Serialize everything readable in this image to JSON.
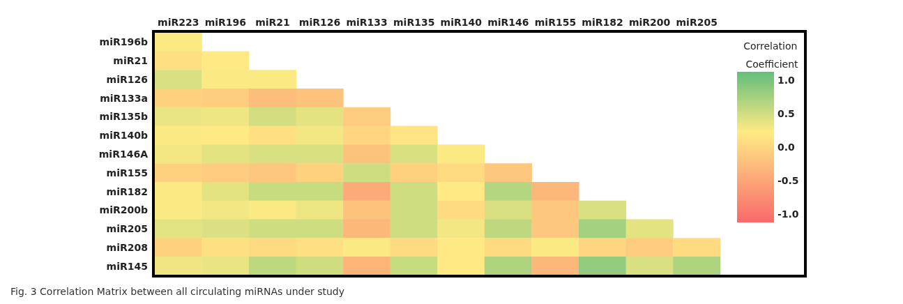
{
  "chart_data": {
    "type": "heatmap",
    "clabel": "Correlation Coefficient",
    "categories": [
      "miR223",
      "miR196",
      "miR21",
      "miR126",
      "miR133",
      "miR135",
      "miR140",
      "miR146",
      "miR155",
      "miR182",
      "miR200",
      "miR205"
    ],
    "y_categories": [
      "miR196b",
      "miR21",
      "miR126",
      "miR133a",
      "miR135b",
      "miR140b",
      "miR146A",
      "miR155",
      "miR182",
      "miR200b",
      "miR205",
      "miR208",
      "miR145"
    ],
    "cells": [
      [
        0.25,
        null,
        null,
        null,
        null,
        null,
        null,
        null,
        null,
        null,
        null,
        null
      ],
      [
        0.1,
        0.2,
        null,
        null,
        null,
        null,
        null,
        null,
        null,
        null,
        null,
        null
      ],
      [
        0.45,
        0.25,
        0.25,
        null,
        null,
        null,
        null,
        null,
        null,
        null,
        null,
        null
      ],
      [
        -0.05,
        -0.1,
        -0.25,
        -0.2,
        null,
        null,
        null,
        null,
        null,
        null,
        null,
        null
      ],
      [
        0.35,
        0.33,
        0.48,
        0.38,
        -0.1,
        null,
        null,
        null,
        null,
        null,
        null,
        null
      ],
      [
        0.25,
        0.2,
        0.1,
        0.3,
        0.0,
        0.15,
        null,
        null,
        null,
        null,
        null,
        null
      ],
      [
        0.3,
        0.38,
        0.45,
        0.45,
        -0.2,
        0.45,
        0.25,
        null,
        null,
        null,
        null,
        null
      ],
      [
        -0.05,
        -0.1,
        -0.15,
        -0.05,
        0.5,
        -0.05,
        0.05,
        -0.15,
        null,
        null,
        null,
        null
      ],
      [
        0.25,
        0.38,
        0.55,
        0.55,
        -0.45,
        0.5,
        0.2,
        0.65,
        -0.3,
        null,
        null,
        null
      ],
      [
        0.25,
        0.3,
        0.25,
        0.33,
        -0.2,
        0.5,
        0.05,
        0.45,
        -0.15,
        0.45,
        null,
        null
      ],
      [
        0.4,
        0.43,
        0.5,
        0.5,
        -0.3,
        0.5,
        0.3,
        0.6,
        -0.15,
        0.75,
        0.38,
        null
      ],
      [
        -0.05,
        0.1,
        0.05,
        0.1,
        0.25,
        0.05,
        0.2,
        0.05,
        0.25,
        0.0,
        -0.1,
        0.05
      ],
      [
        0.32,
        0.35,
        0.6,
        0.5,
        -0.35,
        0.55,
        0.2,
        0.7,
        -0.3,
        0.85,
        0.45,
        0.7
      ]
    ],
    "clim": [
      -1.125,
      1.125
    ],
    "cticks": [
      {
        "value": 1,
        "label": "1.0"
      },
      {
        "value": 0.5,
        "label": "0.5"
      },
      {
        "value": 0,
        "label": "0.0"
      },
      {
        "value": -0.5,
        "label": "-0.5"
      },
      {
        "value": -1,
        "label": "-1.0"
      }
    ],
    "annotations": [
      "Fig. 3 Correlation Matrix between all circulating miRNAs under study"
    ]
  }
}
